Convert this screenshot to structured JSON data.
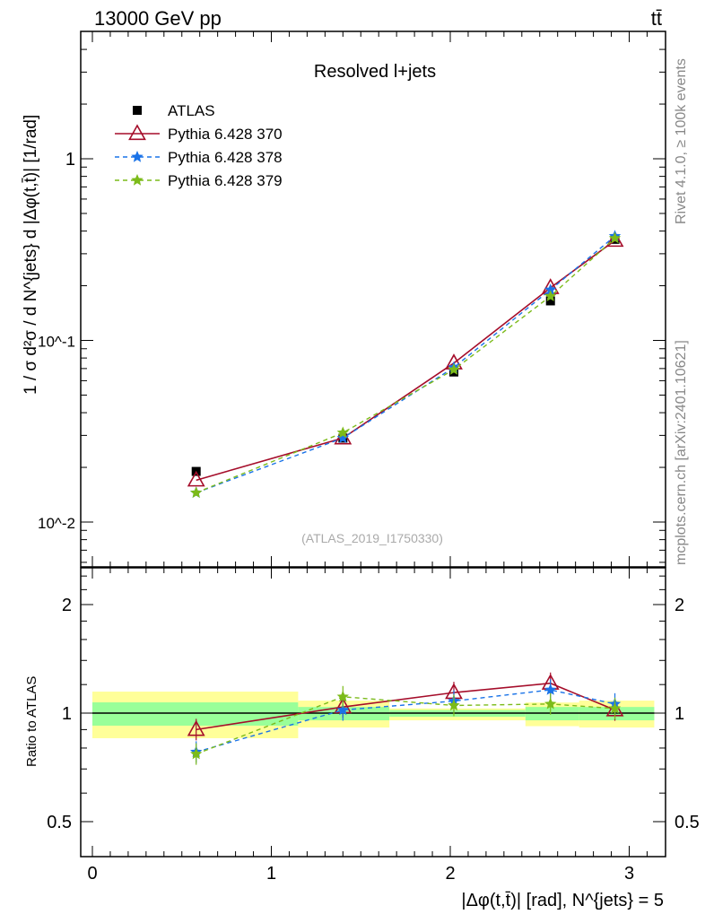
{
  "header": {
    "left": "13000 GeV pp",
    "right": "tt̄"
  },
  "side_labels": {
    "rivet": "Rivet 4.1.0, ≥ 100k events",
    "mcplots": "mcplots.cern.ch [arXiv:2401.10621]"
  },
  "watermark": "(ATLAS_2019_I1750330)",
  "chart_data": [
    {
      "type": "line",
      "title": "Resolved l+jets",
      "xlabel": "|Δφ(t,t̄)| [rad], N^{jets} = 5",
      "ylabel": "1 / σ d²σ / d N^{jets} d |Δφ(t,t̄)| [1/rad]",
      "yscale": "log",
      "ylim": [
        0.0055,
        4.5
      ],
      "xlim": [
        -0.1,
        3.2
      ],
      "yticks": [
        {
          "v": 0.01,
          "label": "10^-2"
        },
        {
          "v": 0.1,
          "label": "10^-1"
        },
        {
          "v": 1,
          "label": "1"
        }
      ],
      "legend_position": "top-left",
      "x": [
        0.58,
        1.4,
        2.02,
        2.56,
        2.92
      ],
      "series": [
        {
          "name": "ATLAS",
          "color": "#000000",
          "marker": "square",
          "values": [
            0.019,
            0.029,
            0.067,
            0.165,
            0.36
          ]
        },
        {
          "name": "Pythia 6.428 370",
          "color": "#a50d2a",
          "marker": "triangle",
          "dash": false,
          "values": [
            0.017,
            0.029,
            0.075,
            0.195,
            0.355
          ]
        },
        {
          "name": "Pythia 6.428 378",
          "color": "#1a73e8",
          "marker": "star",
          "dash": true,
          "values": [
            0.0145,
            0.029,
            0.071,
            0.19,
            0.375
          ]
        },
        {
          "name": "Pythia 6.428 379",
          "color": "#7cbb1a",
          "marker": "star",
          "dash": true,
          "values": [
            0.0145,
            0.031,
            0.069,
            0.175,
            0.365
          ]
        }
      ]
    },
    {
      "type": "line",
      "ylabel": "Ratio to ATLAS",
      "yscale": "log",
      "ylim": [
        0.4,
        2.5
      ],
      "xticks": [
        0,
        1,
        2,
        3
      ],
      "yticks": [
        {
          "v": 0.5,
          "label": "0.5"
        },
        {
          "v": 1,
          "label": "1"
        },
        {
          "v": 2,
          "label": "2"
        }
      ],
      "bins": [
        0,
        1.15,
        1.66,
        2.42,
        2.72,
        3.14
      ],
      "band_yellow": [
        [
          0.852,
          1.147
        ],
        [
          0.912,
          1.083
        ],
        [
          0.955,
          1.03
        ],
        [
          0.92,
          1.07
        ],
        [
          0.912,
          1.083
        ]
      ],
      "band_green": [
        [
          0.923,
          1.071
        ],
        [
          0.955,
          1.04
        ],
        [
          0.977,
          1.02
        ],
        [
          0.955,
          1.04
        ],
        [
          0.955,
          1.04
        ]
      ],
      "x": [
        0.58,
        1.4,
        2.02,
        2.56,
        2.92
      ],
      "series": [
        {
          "name": "Pythia 6.428 370",
          "values": [
            0.9,
            1.04,
            1.14,
            1.21,
            1.02
          ]
        },
        {
          "name": "Pythia 6.428 378",
          "values": [
            0.78,
            1.02,
            1.08,
            1.16,
            1.06
          ]
        },
        {
          "name": "Pythia 6.428 379",
          "values": [
            0.77,
            1.11,
            1.05,
            1.06,
            1.03
          ]
        }
      ]
    }
  ]
}
